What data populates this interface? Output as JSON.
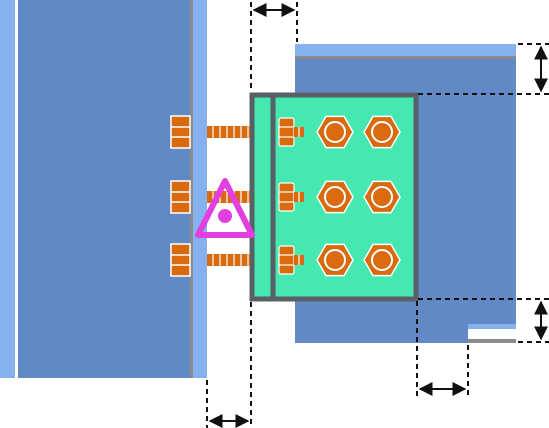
{
  "colors": {
    "column_blue": "#6189c6",
    "column_flange_light": "#85b2ee",
    "steel_grey": "#8b8b8b",
    "plate_fill": "#46e8b2",
    "plate_border": "#595f66",
    "bolt_orange": "#d96a0e",
    "marker_magenta": "#e33fe0",
    "dim_line": "#111111"
  },
  "column": {
    "name": "column",
    "web_color": "column_blue",
    "flange_color": "column_flange_light"
  },
  "beam": {
    "name": "beam",
    "top_flange_color": "column_flange_light"
  },
  "end_plate": {
    "bolt_rows": 3,
    "nut_columns": 2,
    "fill": "plate_fill"
  },
  "connection_bolts": {
    "rows": 3
  },
  "weld_marker": {
    "shape": "triangle-with-dot",
    "color": "marker_magenta"
  },
  "dimensions": [
    "gap-to-plate-top",
    "plate-to-beam-top",
    "plate-to-beam-bottom",
    "beam-cut-offset",
    "gap-to-plate-bottom"
  ]
}
